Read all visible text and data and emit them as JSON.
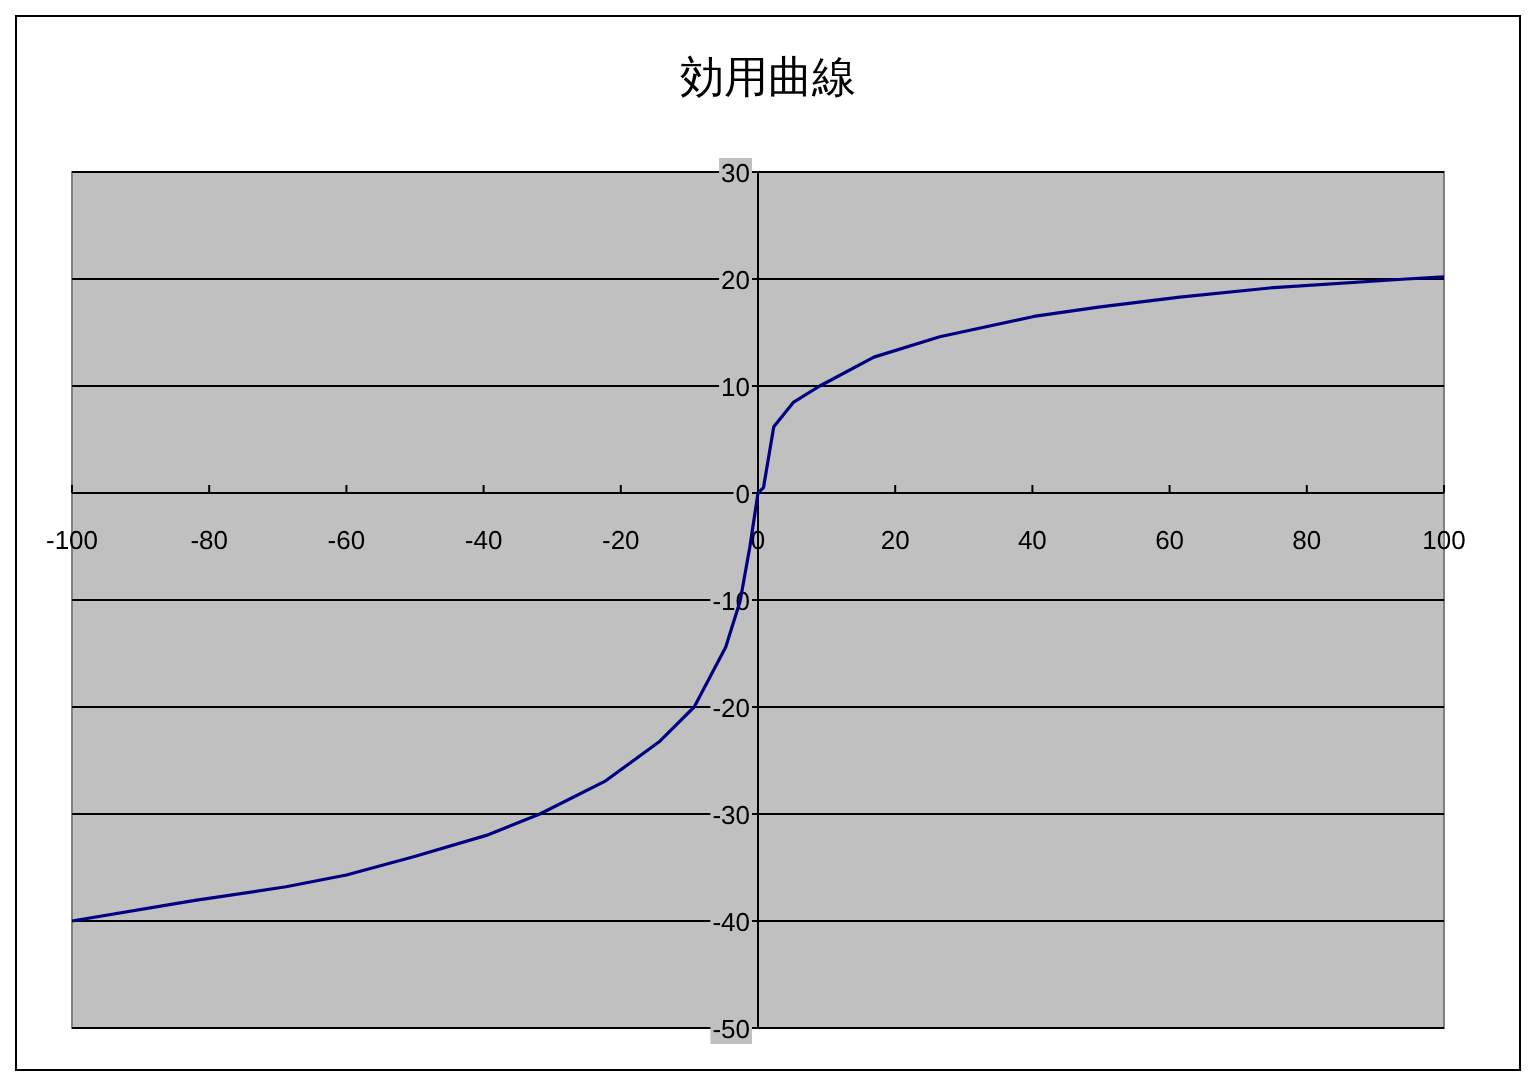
{
  "chart_data": {
    "type": "line",
    "title": "効用曲線",
    "x": [
      -100,
      -82.3,
      -68.8,
      -60,
      -50.2,
      -39.6,
      -31.8,
      -22.2,
      -14.3,
      -9.3,
      -4.7,
      -2.6,
      -1.2,
      0,
      0.8,
      2.3,
      5.2,
      9,
      16.9,
      26.5,
      40.2,
      49.9,
      61.5,
      75.2,
      94.5,
      100
    ],
    "series": [
      {
        "color": "#000080",
        "values": [
          -40,
          -38.1,
          -36.8,
          -35.7,
          -34,
          -32,
          -30,
          -26.9,
          -23.2,
          -20,
          -14.4,
          -10.1,
          -5.1,
          0,
          0.5,
          6.2,
          8.5,
          10,
          12.7,
          14.6,
          16.5,
          17.4,
          18.3,
          19.2,
          20,
          20.2
        ]
      }
    ],
    "xlim": [
      -100,
      100
    ],
    "ylim": [
      -50,
      30
    ],
    "xticks": [
      -100,
      -80,
      -60,
      -40,
      -20,
      0,
      20,
      40,
      60,
      80,
      100
    ],
    "yticks": [
      -50,
      -40,
      -30,
      -20,
      -10,
      0,
      10,
      20,
      30
    ],
    "grid": "y"
  }
}
